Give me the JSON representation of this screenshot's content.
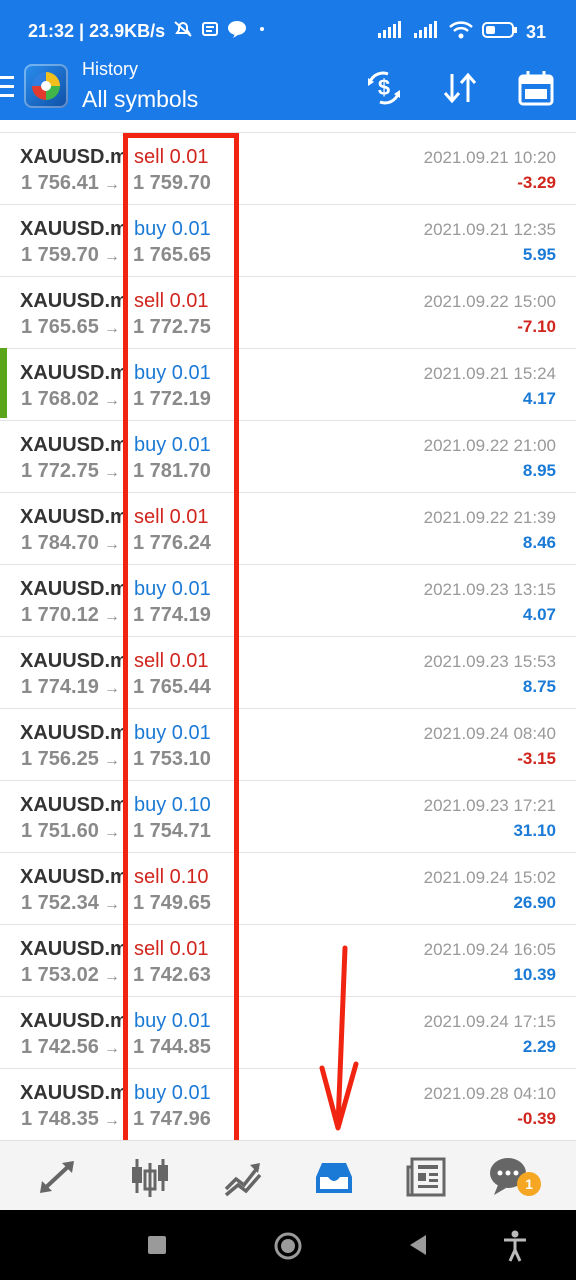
{
  "status_bar": {
    "time_speed": "21:32 | 23.9KB/s",
    "battery": "31"
  },
  "header": {
    "title": "History",
    "subtitle": "All symbols"
  },
  "icons": {
    "menu": "menu-icon",
    "currency": "currency-switch-icon",
    "sort": "sort-icon",
    "calendar": "calendar-icon"
  },
  "colors": {
    "bar": "#1a7ae8",
    "buy": "#1a7ad6",
    "sell": "#d0261d",
    "highlight": "#f02411"
  },
  "trades": [
    {
      "symbol": "XAUUSD.mt",
      "type": "sell",
      "lot": "sell 0.01",
      "open": "1 756.41",
      "close": "1 759.70",
      "time": "2021.09.21 10:20",
      "profit": "-3.29"
    },
    {
      "symbol": "XAUUSD.mt",
      "type": "buy",
      "lot": "buy 0.01",
      "open": "1 759.70",
      "close": "1 765.65",
      "time": "2021.09.21 12:35",
      "profit": "5.95"
    },
    {
      "symbol": "XAUUSD.mt",
      "type": "sell",
      "lot": "sell 0.01",
      "open": "1 765.65",
      "close": "1 772.75",
      "time": "2021.09.22 15:00",
      "profit": "-7.10"
    },
    {
      "symbol": "XAUUSD.mt",
      "type": "buy",
      "lot": "buy 0.01",
      "open": "1 768.02",
      "close": "1 772.19",
      "time": "2021.09.21 15:24",
      "profit": "4.17"
    },
    {
      "symbol": "XAUUSD.mt",
      "type": "buy",
      "lot": "buy 0.01",
      "open": "1 772.75",
      "close": "1 781.70",
      "time": "2021.09.22 21:00",
      "profit": "8.95"
    },
    {
      "symbol": "XAUUSD.mt",
      "type": "sell",
      "lot": "sell 0.01",
      "open": "1 784.70",
      "close": "1 776.24",
      "time": "2021.09.22 21:39",
      "profit": "8.46"
    },
    {
      "symbol": "XAUUSD.mt",
      "type": "buy",
      "lot": "buy 0.01",
      "open": "1 770.12",
      "close": "1 774.19",
      "time": "2021.09.23 13:15",
      "profit": "4.07"
    },
    {
      "symbol": "XAUUSD.mt",
      "type": "sell",
      "lot": "sell 0.01",
      "open": "1 774.19",
      "close": "1 765.44",
      "time": "2021.09.23 15:53",
      "profit": "8.75"
    },
    {
      "symbol": "XAUUSD.mt",
      "type": "buy",
      "lot": "buy 0.01",
      "open": "1 756.25",
      "close": "1 753.10",
      "time": "2021.09.24 08:40",
      "profit": "-3.15"
    },
    {
      "symbol": "XAUUSD.mt",
      "type": "buy",
      "lot": "buy 0.10",
      "open": "1 751.60",
      "close": "1 754.71",
      "time": "2021.09.23 17:21",
      "profit": "31.10"
    },
    {
      "symbol": "XAUUSD.mt",
      "type": "sell",
      "lot": "sell 0.10",
      "open": "1 752.34",
      "close": "1 749.65",
      "time": "2021.09.24 15:02",
      "profit": "26.90"
    },
    {
      "symbol": "XAUUSD.mt",
      "type": "sell",
      "lot": "sell 0.01",
      "open": "1 753.02",
      "close": "1 742.63",
      "time": "2021.09.24 16:05",
      "profit": "10.39"
    },
    {
      "symbol": "XAUUSD.mt",
      "type": "buy",
      "lot": "buy 0.01",
      "open": "1 742.56",
      "close": "1 744.85",
      "time": "2021.09.24 17:15",
      "profit": "2.29"
    },
    {
      "symbol": "XAUUSD.mt",
      "type": "buy",
      "lot": "buy 0.01",
      "open": "1 748.35",
      "close": "1 747.96",
      "time": "2021.09.28 04:10",
      "profit": "-0.39"
    }
  ],
  "bottom_nav": {
    "items": [
      "quotes-icon",
      "chart-icon",
      "trade-icon",
      "history-icon",
      "news-icon",
      "messages-icon"
    ],
    "active": "history-icon",
    "messages_badge": "1"
  },
  "system_nav": [
    "recents-button",
    "home-button",
    "back-button",
    "accessibility-button"
  ]
}
